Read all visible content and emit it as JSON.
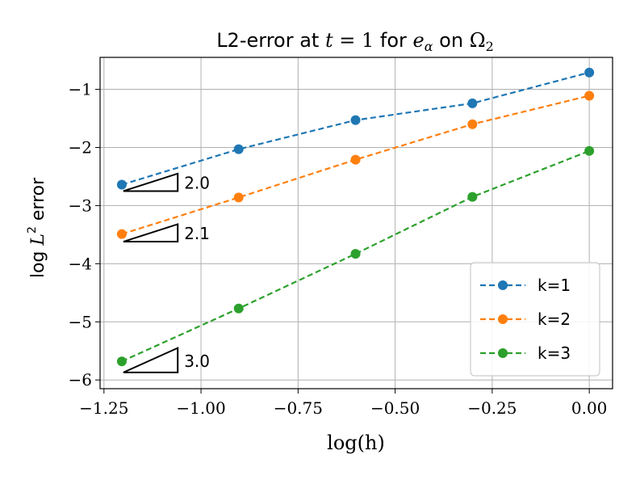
{
  "chart_data": {
    "type": "line",
    "title": {
      "prefix": "L2-error at ",
      "t_var": "t",
      "t_eq": " = 1",
      "middle": " for ",
      "e_base": "e",
      "e_sub": "α",
      "on": " on ",
      "omega": "Ω",
      "omega_sub": "2"
    },
    "xlabel": "log(h)",
    "ylabel": {
      "pre": "log ",
      "L": "L",
      "sup": "2",
      "post": " error"
    },
    "xlim": [
      -1.26,
      0.06
    ],
    "ylim": [
      -6.15,
      -0.45
    ],
    "x_ticks": [
      -1.25,
      -1.0,
      -0.75,
      -0.5,
      -0.25,
      0.0
    ],
    "x_tick_labels": [
      "−1.25",
      "−1.00",
      "−0.75",
      "−0.50",
      "−0.25",
      "0.00"
    ],
    "y_ticks": [
      -1,
      -2,
      -3,
      -4,
      -5,
      -6
    ],
    "y_tick_labels": [
      "−1",
      "−2",
      "−3",
      "−4",
      "−5",
      "−6"
    ],
    "grid": true,
    "legend_position": "lower right",
    "x": [
      -1.204,
      -0.903,
      -0.602,
      -0.301,
      0.0
    ],
    "series": [
      {
        "name": "k=1",
        "color": "#1f77b4",
        "values": [
          -2.64,
          -2.03,
          -1.53,
          -1.24,
          -0.71
        ]
      },
      {
        "name": "k=2",
        "color": "#ff7f0e",
        "values": [
          -3.49,
          -2.86,
          -2.21,
          -1.6,
          -1.11
        ]
      },
      {
        "name": "k=3",
        "color": "#2ca02c",
        "values": [
          -5.68,
          -4.77,
          -3.83,
          -2.85,
          -2.06
        ]
      }
    ],
    "slope_annotations": [
      {
        "label": "2.0",
        "x0": -1.2,
        "x1": -1.06,
        "y_base": -2.75,
        "y_top": -2.45
      },
      {
        "label": "2.1",
        "x0": -1.2,
        "x1": -1.06,
        "y_base": -3.62,
        "y_top": -3.32
      },
      {
        "label": "3.0",
        "x0": -1.2,
        "x1": -1.06,
        "y_base": -5.87,
        "y_top": -5.45
      }
    ]
  }
}
